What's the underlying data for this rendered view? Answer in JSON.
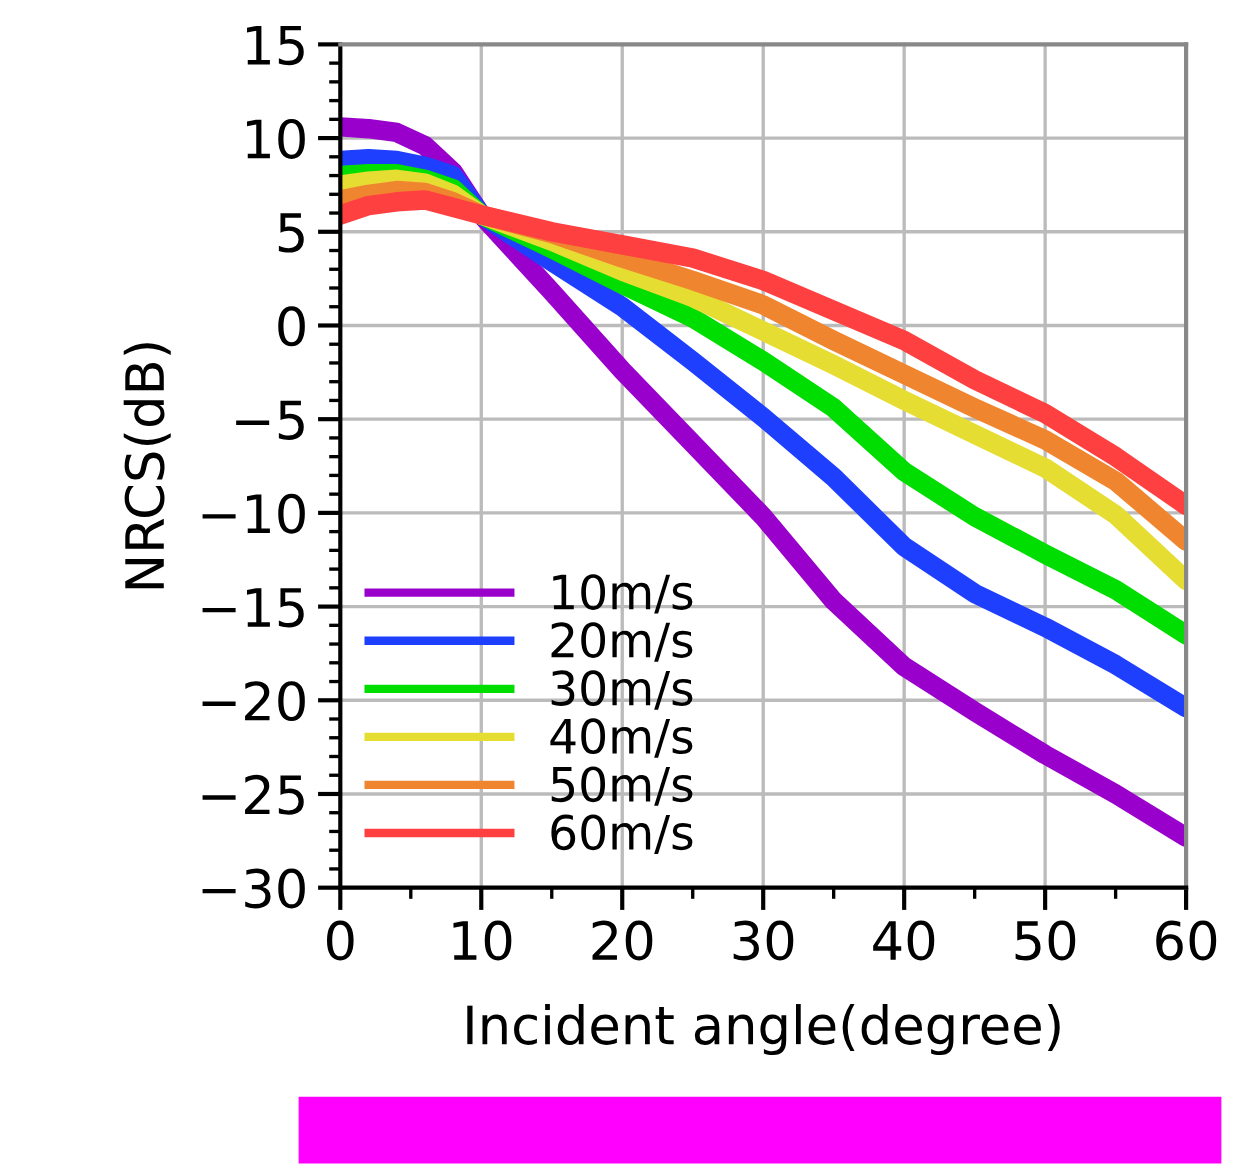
{
  "chart_data": {
    "type": "line",
    "xlabel": "Incident angle(degree)",
    "ylabel": "NRCS(dB)",
    "x": [
      0,
      2,
      4,
      6,
      8,
      10,
      15,
      20,
      25,
      30,
      35,
      40,
      45,
      50,
      55,
      60
    ],
    "xlim": [
      0,
      60
    ],
    "xticks": [
      0,
      10,
      20,
      30,
      40,
      50,
      60
    ],
    "ylim": [
      -30,
      15
    ],
    "yticks": [
      {
        "value": -30,
        "label": "−30"
      },
      {
        "value": -25,
        "label": "−25"
      },
      {
        "value": -20,
        "label": "−20"
      },
      {
        "value": -15,
        "label": "−15"
      },
      {
        "value": -10,
        "label": "−10"
      },
      {
        "value": -5,
        "label": "−5"
      },
      0,
      5,
      10,
      15
    ],
    "grid": true,
    "legend": "bottom left",
    "marker": "none",
    "line_style": "solid",
    "series": [
      {
        "name": "10m/s",
        "color": "#9900cc",
        "values": [
          10.6,
          10.5,
          10.3,
          9.6,
          8.2,
          5.9,
          1.8,
          -2.4,
          -6.3,
          -10.2,
          -14.7,
          -18.2,
          -20.6,
          -22.9,
          -25,
          -27.3
        ]
      },
      {
        "name": "20m/s",
        "color": "#1f3fff",
        "values": [
          8.8,
          8.9,
          8.8,
          8.5,
          8.0,
          5.9,
          3.4,
          1.0,
          -1.9,
          -4.9,
          -8.1,
          -11.8,
          -14.3,
          -16.1,
          -18.1,
          -20.4
        ]
      },
      {
        "name": "30m/s",
        "color": "#00dd00",
        "values": [
          8.0,
          8.1,
          8.1,
          7.8,
          7.3,
          5.9,
          4.1,
          2.2,
          0.4,
          -1.9,
          -4.4,
          -7.8,
          -10.2,
          -12.2,
          -14.1,
          -16.5
        ]
      },
      {
        "name": "40m/s",
        "color": "#e6dd33",
        "values": [
          7.5,
          7.7,
          7.8,
          7.6,
          7.0,
          5.9,
          4.5,
          2.9,
          1.5,
          -0.3,
          -2.1,
          -4.0,
          -5.8,
          -7.6,
          -10.1,
          -13.6
        ]
      },
      {
        "name": "50m/s",
        "color": "#f08530",
        "values": [
          6.7,
          7.0,
          7.2,
          7.1,
          6.6,
          5.9,
          4.9,
          3.6,
          2.4,
          1.1,
          -0.8,
          -2.6,
          -4.4,
          -6.1,
          -8.3,
          -11.5
        ]
      },
      {
        "name": "60m/s",
        "color": "#ff4040",
        "values": [
          5.9,
          6.4,
          6.6,
          6.7,
          6.3,
          5.9,
          5.0,
          4.3,
          3.6,
          2.4,
          0.8,
          -0.8,
          -2.9,
          -4.7,
          -7.0,
          -9.6
        ]
      }
    ]
  }
}
